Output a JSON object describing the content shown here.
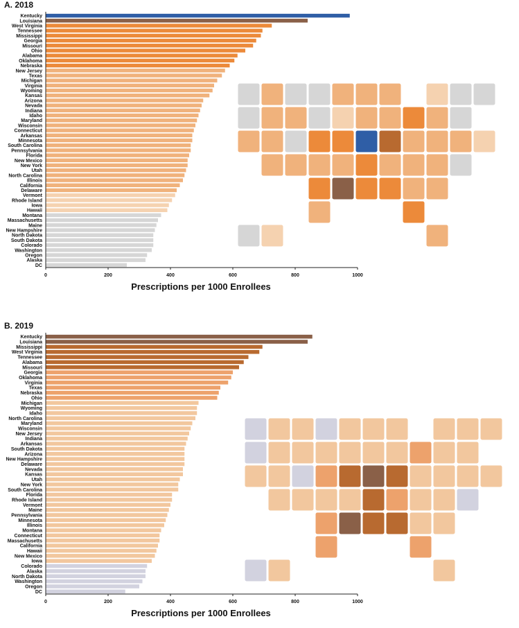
{
  "colors": {
    "highlight_blue": "#2f5ea6",
    "dark_brown": "#8a6048",
    "brown_orange": "#b86a30",
    "orange": "#ec8a3a",
    "mid_orange": "#eda26c",
    "light_orange": "#f2c79e",
    "pale": "#f5dcc6",
    "gray": "#d6d6d6",
    "lavender": "#d2d2df"
  },
  "icons": {
    "map": "us-state-choropleth-map"
  },
  "chart_data": [
    {
      "type": "bar",
      "orientation": "horizontal",
      "title": "A. 2018",
      "xlabel": "Prescriptions per 1000 Enrollees",
      "ylabel": "",
      "xlim": [
        0,
        1000
      ],
      "xticks": [
        "0",
        "200",
        "400",
        "600",
        "800",
        "1000"
      ],
      "grid": false,
      "categories": [
        "Kentucky",
        "Louisiana",
        "West Virginia",
        "Tennessee",
        "Mississippi",
        "Georgia",
        "Missouri",
        "Ohio",
        "Alabama",
        "Oklahoma",
        "Nebraska",
        "New Jersey",
        "Texas",
        "Michigan",
        "Virginia",
        "Wyoming",
        "Kansas",
        "Arizona",
        "Nevada",
        "Indiana",
        "Idaho",
        "Maryland",
        "Wisconsin",
        "Connecticut",
        "Arkansas",
        "Minnesota",
        "South Carolina",
        "Pennsylvania",
        "Florida",
        "New Mexico",
        "New York",
        "Utah",
        "North Carolina",
        "Illinois",
        "California",
        "Delaware",
        "Vermont",
        "Rhode Island",
        "Iowa",
        "Hawaii",
        "Montana",
        "Massachusetts",
        "Maine",
        "New Hampshire",
        "North Dakota",
        "South Dakota",
        "Colorado",
        "Washington",
        "Oregon",
        "Alaska",
        "DC"
      ],
      "values": [
        975,
        840,
        725,
        695,
        690,
        675,
        665,
        640,
        615,
        605,
        590,
        575,
        565,
        550,
        540,
        535,
        525,
        505,
        500,
        495,
        490,
        485,
        480,
        475,
        470,
        470,
        465,
        465,
        460,
        455,
        455,
        450,
        445,
        440,
        430,
        420,
        415,
        405,
        395,
        390,
        370,
        360,
        355,
        350,
        345,
        345,
        345,
        340,
        325,
        320,
        260
      ],
      "bar_colors": [
        "#2f5ea6",
        "#8a6048",
        "#ec8a3a",
        "#ec8a3a",
        "#ec8a3a",
        "#ec8a3a",
        "#ec8a3a",
        "#ec8a3a",
        "#ec8a3a",
        "#ec8a3a",
        "#ec8a3a",
        "#f0b27c",
        "#f0b27c",
        "#f0b27c",
        "#f0b27c",
        "#f0b27c",
        "#f0b27c",
        "#f0b27c",
        "#f0b27c",
        "#f0b27c",
        "#f0b27c",
        "#f0b27c",
        "#f0b27c",
        "#f0b27c",
        "#f0b27c",
        "#f0b27c",
        "#f0b27c",
        "#f0b27c",
        "#f0b27c",
        "#f0b27c",
        "#f0b27c",
        "#f0b27c",
        "#f0b27c",
        "#f0b27c",
        "#f0b27c",
        "#f0b27c",
        "#f5d2b0",
        "#f5d2b0",
        "#f5d2b0",
        "#f5d2b0",
        "#d6d6d6",
        "#d6d6d6",
        "#d6d6d6",
        "#d6d6d6",
        "#d6d6d6",
        "#d6d6d6",
        "#d6d6d6",
        "#d6d6d6",
        "#d6d6d6",
        "#d6d6d6",
        "#d6d6d6"
      ]
    },
    {
      "type": "bar",
      "orientation": "horizontal",
      "title": "B. 2019",
      "xlabel": "Prescriptions per 1000 Enrollees",
      "ylabel": "",
      "xlim": [
        0,
        1000
      ],
      "xticks": [
        "0",
        "200",
        "400",
        "600",
        "800",
        "1000"
      ],
      "grid": false,
      "categories": [
        "Kentucky",
        "Louisiana",
        "Mississippi",
        "West Virginia",
        "Tennessee",
        "Alabama",
        "Missouri",
        "Georgia",
        "Oklahoma",
        "Virginia",
        "Texas",
        "Nebraska",
        "Ohio",
        "Michigan",
        "Wyoming",
        "Idaho",
        "North Carolina",
        "Maryland",
        "Wisconsin",
        "New Jersey",
        "Indiana",
        "Arkansas",
        "South Dakota",
        "Arizona",
        "New Hampshire",
        "Delaware",
        "Nevada",
        "Kansas",
        "Utah",
        "New York",
        "South Carolina",
        "Florida",
        "Rhode Island",
        "Vermont",
        "Maine",
        "Pennsylvania",
        "Minnesota",
        "Illinois",
        "Montana",
        "Connecticut",
        "Massachusetts",
        "California",
        "Hawaii",
        "New Mexico",
        "Iowa",
        "Colorado",
        "Alaska",
        "North Dakota",
        "Washington",
        "Oregon",
        "DC"
      ],
      "values": [
        855,
        840,
        695,
        685,
        650,
        635,
        620,
        600,
        595,
        585,
        560,
        555,
        550,
        490,
        485,
        485,
        480,
        470,
        465,
        460,
        455,
        450,
        445,
        445,
        445,
        445,
        440,
        440,
        430,
        425,
        425,
        405,
        405,
        400,
        395,
        390,
        385,
        380,
        370,
        365,
        365,
        360,
        355,
        350,
        340,
        325,
        320,
        320,
        310,
        300,
        255
      ],
      "bar_colors": [
        "#8a6048",
        "#8a6048",
        "#b86a30",
        "#b86a30",
        "#b86a30",
        "#b86a30",
        "#b86a30",
        "#eda26c",
        "#eda26c",
        "#eda26c",
        "#eda26c",
        "#eda26c",
        "#eda26c",
        "#f2c79e",
        "#f2c79e",
        "#f2c79e",
        "#f2c79e",
        "#f2c79e",
        "#f2c79e",
        "#f2c79e",
        "#f2c79e",
        "#f2c79e",
        "#f2c79e",
        "#f2c79e",
        "#f2c79e",
        "#f2c79e",
        "#f2c79e",
        "#f2c79e",
        "#f2c79e",
        "#f2c79e",
        "#f2c79e",
        "#f2c79e",
        "#f2c79e",
        "#f2c79e",
        "#f2c79e",
        "#f2c79e",
        "#f2c79e",
        "#f2c79e",
        "#f2c79e",
        "#f2c79e",
        "#f2c79e",
        "#f2c79e",
        "#f2c79e",
        "#f2c79e",
        "#f2c79e",
        "#d2d2df",
        "#d2d2df",
        "#d2d2df",
        "#d2d2df",
        "#d2d2df",
        "#d2d2df"
      ]
    }
  ]
}
